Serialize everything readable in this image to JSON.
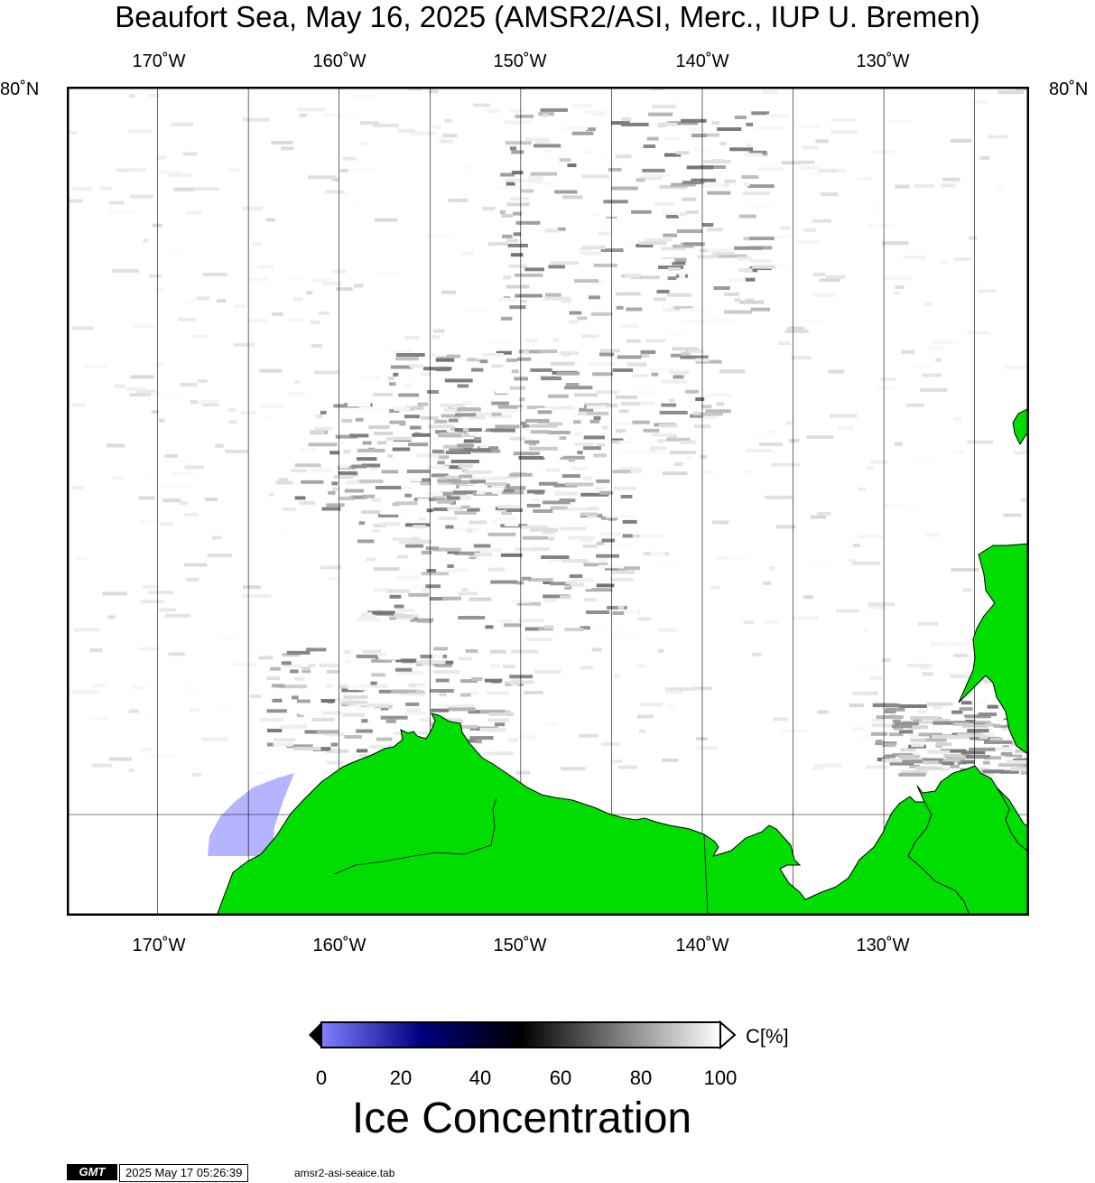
{
  "title": "Beaufort Sea, May 16, 2025 (AMSR2/ASI, Merc., IUP U. Bremen)",
  "map": {
    "lon_labels": [
      "170˚W",
      "160˚W",
      "150˚W",
      "140˚W",
      "130˚W"
    ],
    "lat_label": "80˚N",
    "lon_range": [
      -175,
      -122
    ],
    "land_color": "#00dd00",
    "ocean_color": "#ffffff",
    "gridline_color": "#000000"
  },
  "colorbar": {
    "ticks": [
      "0",
      "20",
      "40",
      "60",
      "80",
      "100"
    ],
    "unit": "C[%]",
    "range": [
      0,
      100
    ],
    "colors": {
      "low": "#7f7fff",
      "mid_low": "#00007f",
      "mid": "#000000",
      "high": "#ffffff"
    }
  },
  "legend_title": "Ice Concentration",
  "footer": {
    "logo": "GMT",
    "timestamp": "2025 May 17 05:26:39",
    "file": "amsr2-asi-seaice.tab"
  }
}
